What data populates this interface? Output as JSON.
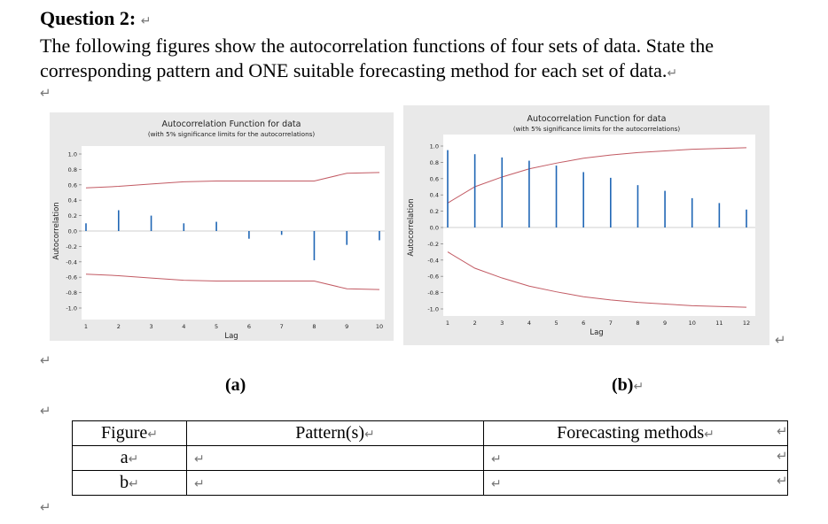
{
  "question": {
    "title": "Question 2:",
    "text": "The following figures show the autocorrelation functions of four sets of data. State the corresponding pattern and ONE suitable forecasting method for each set of data."
  },
  "return_mark": "↵",
  "chart_data": [
    {
      "type": "bar",
      "title": "Autocorrelation Function for data",
      "subtitle": "(with 5% significance limits for the autocorrelations)",
      "xlabel": "Lag",
      "ylabel": "Autocorrelation",
      "categories": [
        "1",
        "2",
        "3",
        "4",
        "5",
        "6",
        "7",
        "8",
        "9",
        "10"
      ],
      "values": [
        0.1,
        0.27,
        0.2,
        0.1,
        0.12,
        -0.1,
        -0.05,
        -0.38,
        -0.18,
        -0.12
      ],
      "upper_limit": [
        0.56,
        0.58,
        0.61,
        0.64,
        0.65,
        0.65,
        0.65,
        0.65,
        0.75,
        0.76
      ],
      "lower_limit": [
        -0.56,
        -0.58,
        -0.61,
        -0.64,
        -0.65,
        -0.65,
        -0.65,
        -0.65,
        -0.75,
        -0.76
      ],
      "yticks": [
        "1.0",
        "0.8",
        "0.6",
        "0.4",
        "0.2",
        "0.0",
        "-0.2",
        "-0.4",
        "-0.6",
        "-0.8",
        "-1.0"
      ],
      "ylim": [
        -1,
        1
      ]
    },
    {
      "type": "bar",
      "title": "Autocorrelation Function for data",
      "subtitle": "(with 5% significance limits for the autocorrelations)",
      "xlabel": "Lag",
      "ylabel": "Autocorrelation",
      "categories": [
        "1",
        "2",
        "3",
        "4",
        "5",
        "6",
        "7",
        "8",
        "9",
        "10",
        "11",
        "12"
      ],
      "values": [
        0.95,
        0.9,
        0.86,
        0.82,
        0.76,
        0.68,
        0.61,
        0.52,
        0.45,
        0.36,
        0.3,
        0.22
      ],
      "upper_limit": [
        0.3,
        0.5,
        0.62,
        0.72,
        0.79,
        0.85,
        0.89,
        0.92,
        0.94,
        0.96,
        0.97,
        0.98
      ],
      "lower_limit": [
        -0.3,
        -0.5,
        -0.62,
        -0.72,
        -0.79,
        -0.85,
        -0.89,
        -0.92,
        -0.94,
        -0.96,
        -0.97,
        -0.98
      ],
      "yticks": [
        "1.0",
        "0.8",
        "0.6",
        "0.4",
        "0.2",
        "0.0",
        "-0.2",
        "-0.4",
        "-0.6",
        "-0.8",
        "-1.0"
      ],
      "ylim": [
        -1,
        1
      ]
    }
  ],
  "captions": {
    "a": "(a)",
    "b": "(b)"
  },
  "table": {
    "headers": [
      "Figure",
      "Pattern(s)",
      "Forecasting methods"
    ],
    "rows": [
      {
        "figure": "a",
        "pattern": "",
        "method": ""
      },
      {
        "figure": "b",
        "pattern": "",
        "method": ""
      }
    ]
  }
}
